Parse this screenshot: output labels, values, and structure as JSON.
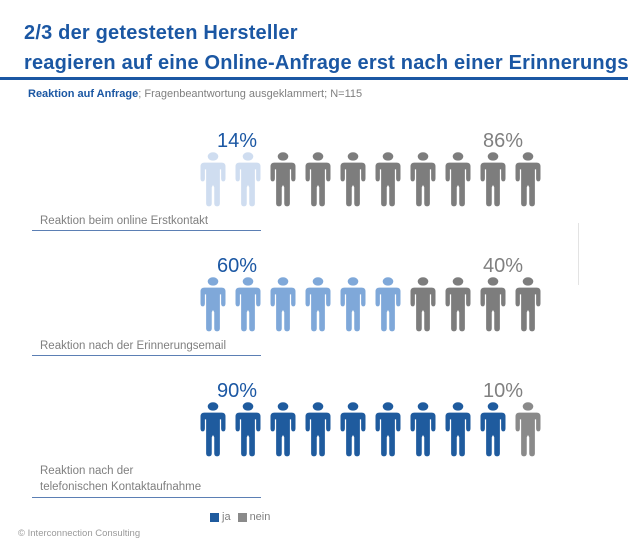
{
  "header": {
    "title_line1": "2/3 der getesteten Hersteller",
    "title_line2": "reagieren auf eine Online-Anfrage erst nach einer Erinnerungsemail",
    "subtitle_bold": "Reaktion auf Anfrage",
    "subtitle_rest": "; Fragenbeantwortung ausgeklammert; N=115"
  },
  "chart_data": {
    "type": "bar",
    "subtype": "pictogram",
    "title": "2/3 der getesteten Hersteller reagieren auf eine Online-Anfrage erst nach einer Erinnerungsemail",
    "subtitle": "Reaktion auf Anfrage; Fragenbeantwortung ausgeklammert; N=115",
    "sample_size": "N=115",
    "icons_per_row": 10,
    "percent_per_icon": 10,
    "legend_position": "bottom-center",
    "categories": [
      "Reaktion beim online Erstkontakt",
      "Reaktion nach der Erinnerungsemail",
      "Reaktion nach der telefonischen Kontaktaufnahme"
    ],
    "series": [
      {
        "name": "ja",
        "values": [
          14,
          60,
          90
        ]
      },
      {
        "name": "nein",
        "values": [
          86,
          40,
          10
        ]
      }
    ],
    "rows": [
      {
        "label_lines": [
          "Reaktion beim online Erstkontakt"
        ],
        "ja_percent_label": "14%",
        "nein_percent_label": "86%",
        "ja_icon_count": 2,
        "nein_icon_count": 8,
        "ja_icon_color": "#cfddf0",
        "nein_icon_color": "#7d7d7d"
      },
      {
        "label_lines": [
          "Reaktion nach der Erinnerungsemail"
        ],
        "ja_percent_label": "60%",
        "nein_percent_label": "40%",
        "ja_icon_count": 6,
        "nein_icon_count": 4,
        "ja_icon_color": "#7fa8d9",
        "nein_icon_color": "#7d7d7d"
      },
      {
        "label_lines": [
          "Reaktion nach der",
          "telefonischen Kontaktaufnahme"
        ],
        "ja_percent_label": "90%",
        "nein_percent_label": "10%",
        "ja_icon_count": 9,
        "nein_icon_count": 1,
        "ja_icon_color": "#1f5b9e",
        "nein_icon_color": "#8a8a8a"
      }
    ],
    "legend": [
      {
        "label": "ja",
        "color": "#1f5b9e"
      },
      {
        "label": "nein",
        "color": "#8a8a8a"
      }
    ]
  },
  "footer": {
    "copyright": "© Interconnection Consulting"
  },
  "colors": {
    "title_blue": "#1b57a3",
    "rule_blue": "#1b57a3",
    "underline_blue": "#5b7fb4",
    "text_gray": "#7f7f7f",
    "pct_nein_gray": "#808080"
  }
}
